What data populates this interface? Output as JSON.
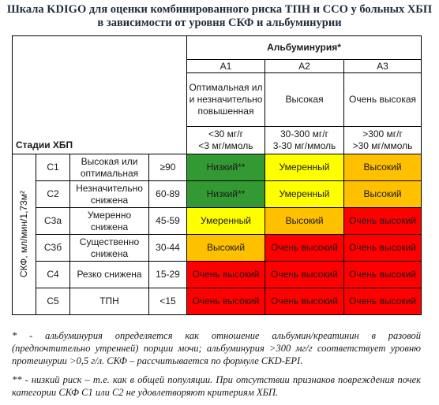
{
  "header": {
    "title_line1": "Шкала KDIGO для оценки комбинированного риска ТПН и ССО у больных ХБП",
    "title_line2": "в зависимости от уровня СКФ и альбуминурии"
  },
  "table": {
    "stages_label": "Стадии ХБП",
    "gfr_label": "СКФ, мл/мин/1,73м²",
    "albuminuria_label": "Альбуминурия*",
    "columns": [
      {
        "code": "А1",
        "description": "Оптимальная или незначительно повышенная",
        "unit_line1": "<30 мг/г",
        "unit_line2": "<3 мг/ммоль"
      },
      {
        "code": "А2",
        "description": "Высокая",
        "unit_line1": "30-300 мг/г",
        "unit_line2": "3-30 мг/ммоль"
      },
      {
        "code": "А3",
        "description": "Очень высокая",
        "unit_line1": ">300 мг/г",
        "unit_line2": ">30 мг/ммоль"
      }
    ],
    "rows": [
      {
        "code": "С1",
        "description": "Высокая или оптимальная",
        "range": "≥90",
        "risks": [
          {
            "text": "Низкий**",
            "color": "#339933"
          },
          {
            "text": "Умеренный",
            "color": "#ffff00"
          },
          {
            "text": "Высокий",
            "color": "#ffc000"
          }
        ]
      },
      {
        "code": "С2",
        "description": "Незначительно снижена",
        "range": "60-89",
        "risks": [
          {
            "text": "Низкий**",
            "color": "#339933"
          },
          {
            "text": "Умеренный",
            "color": "#ffff00"
          },
          {
            "text": "Высокий",
            "color": "#ffc000"
          }
        ]
      },
      {
        "code": "С3а",
        "description": "Умеренно снижена",
        "range": "45-59",
        "risks": [
          {
            "text": "Умеренный",
            "color": "#ffff00"
          },
          {
            "text": "Высокий",
            "color": "#ffc000"
          },
          {
            "text": "Очень высокий",
            "color": "#ff0000"
          }
        ]
      },
      {
        "code": "С3б",
        "description": "Существенно снижена",
        "range": "30-44",
        "risks": [
          {
            "text": "Высокий",
            "color": "#ffc000"
          },
          {
            "text": "Очень высокий",
            "color": "#ff0000"
          },
          {
            "text": "Очень высокий",
            "color": "#ff0000"
          }
        ]
      },
      {
        "code": "С4",
        "description": "Резко снижена",
        "range": "15-29",
        "risks": [
          {
            "text": "Очень высокий",
            "color": "#ff0000"
          },
          {
            "text": "Очень высокий",
            "color": "#ff0000"
          },
          {
            "text": "Очень высокий",
            "color": "#ff0000"
          }
        ]
      },
      {
        "code": "С5",
        "description": "ТПН",
        "range": "<15",
        "risks": [
          {
            "text": "Очень высокий",
            "color": "#ff0000"
          },
          {
            "text": "Очень высокий",
            "color": "#ff0000"
          },
          {
            "text": "Очень высокий",
            "color": "#ff0000"
          }
        ]
      }
    ]
  },
  "footnotes": [
    "* - альбуминурия определяется как отношение альбумин/креатинин в разовой (предпочтительно утренней) порции мочи; альбуминурия >300 мг/г соответствует уровню протеинурии >0,5 г/л. СКФ – рассчитывается по формуле CKD-EPI.",
    "** - низкий риск – т.е. как в общей популяции. При отсутствии признаков повреждения почек категории СКФ С1 или С2 не удовлетворяют критериям ХБП."
  ]
}
